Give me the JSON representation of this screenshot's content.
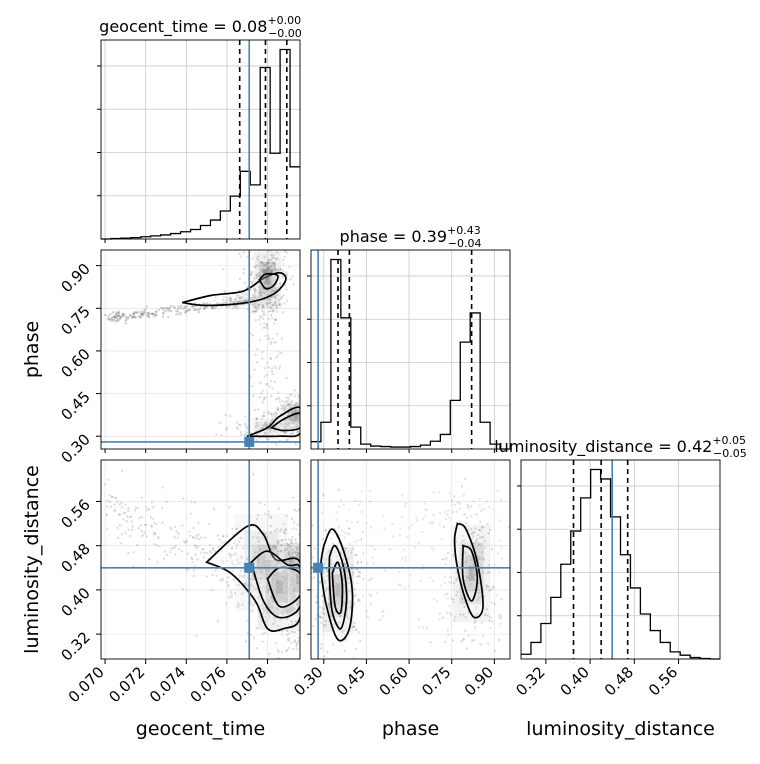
{
  "chart_data": {
    "type": "corner",
    "truth_color": "#4682b4",
    "parameters": [
      {
        "name": "geocent_time",
        "axis_label": "geocent_time",
        "title_prefix": "geocent_time = ",
        "median": "0.08",
        "err_plus": "+0.00",
        "err_minus": "−0.00",
        "range": [
          0.0698,
          0.0796
        ],
        "ticks": [
          0.07,
          0.072,
          0.074,
          0.076,
          0.078
        ],
        "tick_labels": [
          "0.070",
          "0.072",
          "0.074",
          "0.076",
          "0.078"
        ],
        "truth": 0.0771,
        "quantiles": [
          0.07663,
          0.0779,
          0.07895
        ],
        "histogram": {
          "bin_edges": [
            0.0698,
            0.07029,
            0.07078,
            0.07127,
            0.07176,
            0.07225,
            0.07274,
            0.07323,
            0.07372,
            0.07421,
            0.0747,
            0.07519,
            0.07568,
            0.07617,
            0.07666,
            0.07715,
            0.07764,
            0.07813,
            0.07862,
            0.07911,
            0.0796
          ],
          "counts": [
            0,
            1,
            2,
            3,
            5,
            7,
            9,
            12,
            16,
            21,
            30,
            42,
            62,
            95,
            150,
            120,
            380,
            190,
            420,
            160
          ]
        }
      },
      {
        "name": "phase",
        "axis_label": "phase",
        "title_prefix": "phase = ",
        "median": "0.39",
        "err_plus": "+0.43",
        "err_minus": "−0.04",
        "range": [
          0.255,
          0.955
        ],
        "ticks": [
          0.3,
          0.45,
          0.6,
          0.75,
          0.9
        ],
        "tick_labels": [
          "0.30",
          "0.45",
          "0.60",
          "0.75",
          "0.90"
        ],
        "truth": 0.28,
        "quantiles": [
          0.35,
          0.39,
          0.82
        ],
        "histogram": {
          "bin_edges": [
            0.255,
            0.29,
            0.325,
            0.36,
            0.395,
            0.43,
            0.465,
            0.5,
            0.535,
            0.57,
            0.605,
            0.64,
            0.675,
            0.71,
            0.745,
            0.78,
            0.815,
            0.85,
            0.885,
            0.92,
            0.955
          ],
          "counts": [
            15,
            55,
            390,
            270,
            45,
            10,
            6,
            5,
            4,
            4,
            5,
            8,
            16,
            30,
            100,
            220,
            280,
            55,
            10,
            0
          ]
        }
      },
      {
        "name": "luminosity_distance",
        "axis_label": "luminosity_distance",
        "title_prefix": "luminosity_distance = ",
        "median": "0.42",
        "err_plus": "+0.05",
        "err_minus": "−0.05",
        "range": [
          0.275,
          0.635
        ],
        "ticks": [
          0.32,
          0.4,
          0.48,
          0.56
        ],
        "tick_labels": [
          "0.32",
          "0.40",
          "0.48",
          "0.56"
        ],
        "truth": 0.44,
        "quantiles": [
          0.37,
          0.42,
          0.468
        ],
        "histogram": {
          "bin_edges": [
            0.275,
            0.293,
            0.311,
            0.329,
            0.347,
            0.365,
            0.383,
            0.401,
            0.419,
            0.437,
            0.455,
            0.473,
            0.491,
            0.509,
            0.527,
            0.545,
            0.563,
            0.581,
            0.599,
            0.617,
            0.635
          ],
          "counts": [
            10,
            35,
            75,
            130,
            200,
            270,
            340,
            400,
            380,
            300,
            220,
            150,
            95,
            60,
            35,
            15,
            8,
            3,
            1,
            0
          ]
        }
      }
    ],
    "pairs": [
      {
        "x_param": "geocent_time",
        "y_param": "phase",
        "density_blobs": [
          {
            "x": 0.0771,
            "y": 0.778,
            "sx": 0.0005,
            "sy": 0.013,
            "w": 0.25
          },
          {
            "x": 0.078,
            "y": 0.85,
            "sx": 0.0003,
            "sy": 0.045,
            "w": 0.9
          },
          {
            "x": 0.0794,
            "y": 0.37,
            "sx": 0.0003,
            "sy": 0.02,
            "w": 1.0
          },
          {
            "x": 0.0782,
            "y": 0.33,
            "sx": 0.0006,
            "sy": 0.015,
            "w": 0.4
          }
        ],
        "contours": [
          [
            [
              0.0738,
              0.77
            ],
            [
              0.0752,
              0.795
            ],
            [
              0.0768,
              0.81
            ],
            [
              0.0778,
              0.855
            ],
            [
              0.0786,
              0.875
            ],
            [
              0.0789,
              0.85
            ],
            [
              0.0783,
              0.8
            ],
            [
              0.077,
              0.77
            ],
            [
              0.075,
              0.76
            ],
            [
              0.0738,
              0.77
            ]
          ],
          [
            [
              0.0776,
              0.85
            ],
            [
              0.0779,
              0.87
            ],
            [
              0.0785,
              0.865
            ],
            [
              0.0783,
              0.83
            ],
            [
              0.0779,
              0.82
            ],
            [
              0.0776,
              0.85
            ]
          ],
          [
            [
              0.077,
              0.3
            ],
            [
              0.078,
              0.33
            ],
            [
              0.0786,
              0.37
            ],
            [
              0.0796,
              0.4
            ],
            [
              0.0796,
              0.31
            ],
            [
              0.0786,
              0.3
            ],
            [
              0.077,
              0.3
            ]
          ],
          [
            [
              0.0782,
              0.33
            ],
            [
              0.0788,
              0.36
            ],
            [
              0.0796,
              0.38
            ],
            [
              0.0796,
              0.33
            ],
            [
              0.0788,
              0.32
            ],
            [
              0.0782,
              0.33
            ]
          ]
        ]
      },
      {
        "x_param": "geocent_time",
        "y_param": "luminosity_distance",
        "density_blobs": [
          {
            "x": 0.0786,
            "y": 0.405,
            "sx": 0.0005,
            "sy": 0.035,
            "w": 1.0
          },
          {
            "x": 0.0795,
            "y": 0.42,
            "sx": 0.0003,
            "sy": 0.03,
            "w": 0.9
          },
          {
            "x": 0.0777,
            "y": 0.45,
            "sx": 0.0006,
            "sy": 0.04,
            "w": 0.4
          }
        ],
        "contours": [
          [
            [
              0.075,
              0.45
            ],
            [
              0.077,
              0.515
            ],
            [
              0.0778,
              0.5
            ],
            [
              0.0784,
              0.455
            ],
            [
              0.0796,
              0.45
            ],
            [
              0.0796,
              0.35
            ],
            [
              0.0788,
              0.33
            ],
            [
              0.078,
              0.33
            ],
            [
              0.0774,
              0.38
            ],
            [
              0.0762,
              0.43
            ],
            [
              0.075,
              0.45
            ]
          ],
          [
            [
              0.0772,
              0.45
            ],
            [
              0.078,
              0.47
            ],
            [
              0.079,
              0.445
            ],
            [
              0.0796,
              0.44
            ],
            [
              0.0796,
              0.37
            ],
            [
              0.0786,
              0.35
            ],
            [
              0.0778,
              0.38
            ],
            [
              0.0772,
              0.45
            ]
          ],
          [
            [
              0.078,
              0.42
            ],
            [
              0.0786,
              0.44
            ],
            [
              0.0796,
              0.43
            ],
            [
              0.0796,
              0.39
            ],
            [
              0.0786,
              0.37
            ],
            [
              0.078,
              0.42
            ]
          ]
        ]
      },
      {
        "x_param": "phase",
        "y_param": "luminosity_distance",
        "density_blobs": [
          {
            "x": 0.35,
            "y": 0.4,
            "sx": 0.025,
            "sy": 0.035,
            "w": 1.0
          },
          {
            "x": 0.82,
            "y": 0.43,
            "sx": 0.03,
            "sy": 0.04,
            "w": 0.7
          }
        ],
        "contours": [
          [
            [
              0.3,
              0.48
            ],
            [
              0.33,
              0.51
            ],
            [
              0.37,
              0.47
            ],
            [
              0.4,
              0.4
            ],
            [
              0.39,
              0.33
            ],
            [
              0.35,
              0.31
            ],
            [
              0.31,
              0.37
            ],
            [
              0.29,
              0.44
            ],
            [
              0.3,
              0.48
            ]
          ],
          [
            [
              0.32,
              0.46
            ],
            [
              0.34,
              0.48
            ],
            [
              0.37,
              0.44
            ],
            [
              0.38,
              0.38
            ],
            [
              0.36,
              0.33
            ],
            [
              0.33,
              0.36
            ],
            [
              0.32,
              0.42
            ],
            [
              0.32,
              0.46
            ]
          ],
          [
            [
              0.33,
              0.43
            ],
            [
              0.35,
              0.45
            ],
            [
              0.365,
              0.41
            ],
            [
              0.36,
              0.36
            ],
            [
              0.34,
              0.37
            ],
            [
              0.33,
              0.43
            ]
          ],
          [
            [
              0.77,
              0.52
            ],
            [
              0.8,
              0.51
            ],
            [
              0.84,
              0.45
            ],
            [
              0.86,
              0.37
            ],
            [
              0.83,
              0.35
            ],
            [
              0.8,
              0.38
            ],
            [
              0.77,
              0.44
            ],
            [
              0.76,
              0.49
            ],
            [
              0.77,
              0.52
            ]
          ],
          [
            [
              0.79,
              0.48
            ],
            [
              0.82,
              0.47
            ],
            [
              0.84,
              0.42
            ],
            [
              0.82,
              0.38
            ],
            [
              0.79,
              0.42
            ],
            [
              0.79,
              0.48
            ]
          ]
        ]
      }
    ]
  }
}
